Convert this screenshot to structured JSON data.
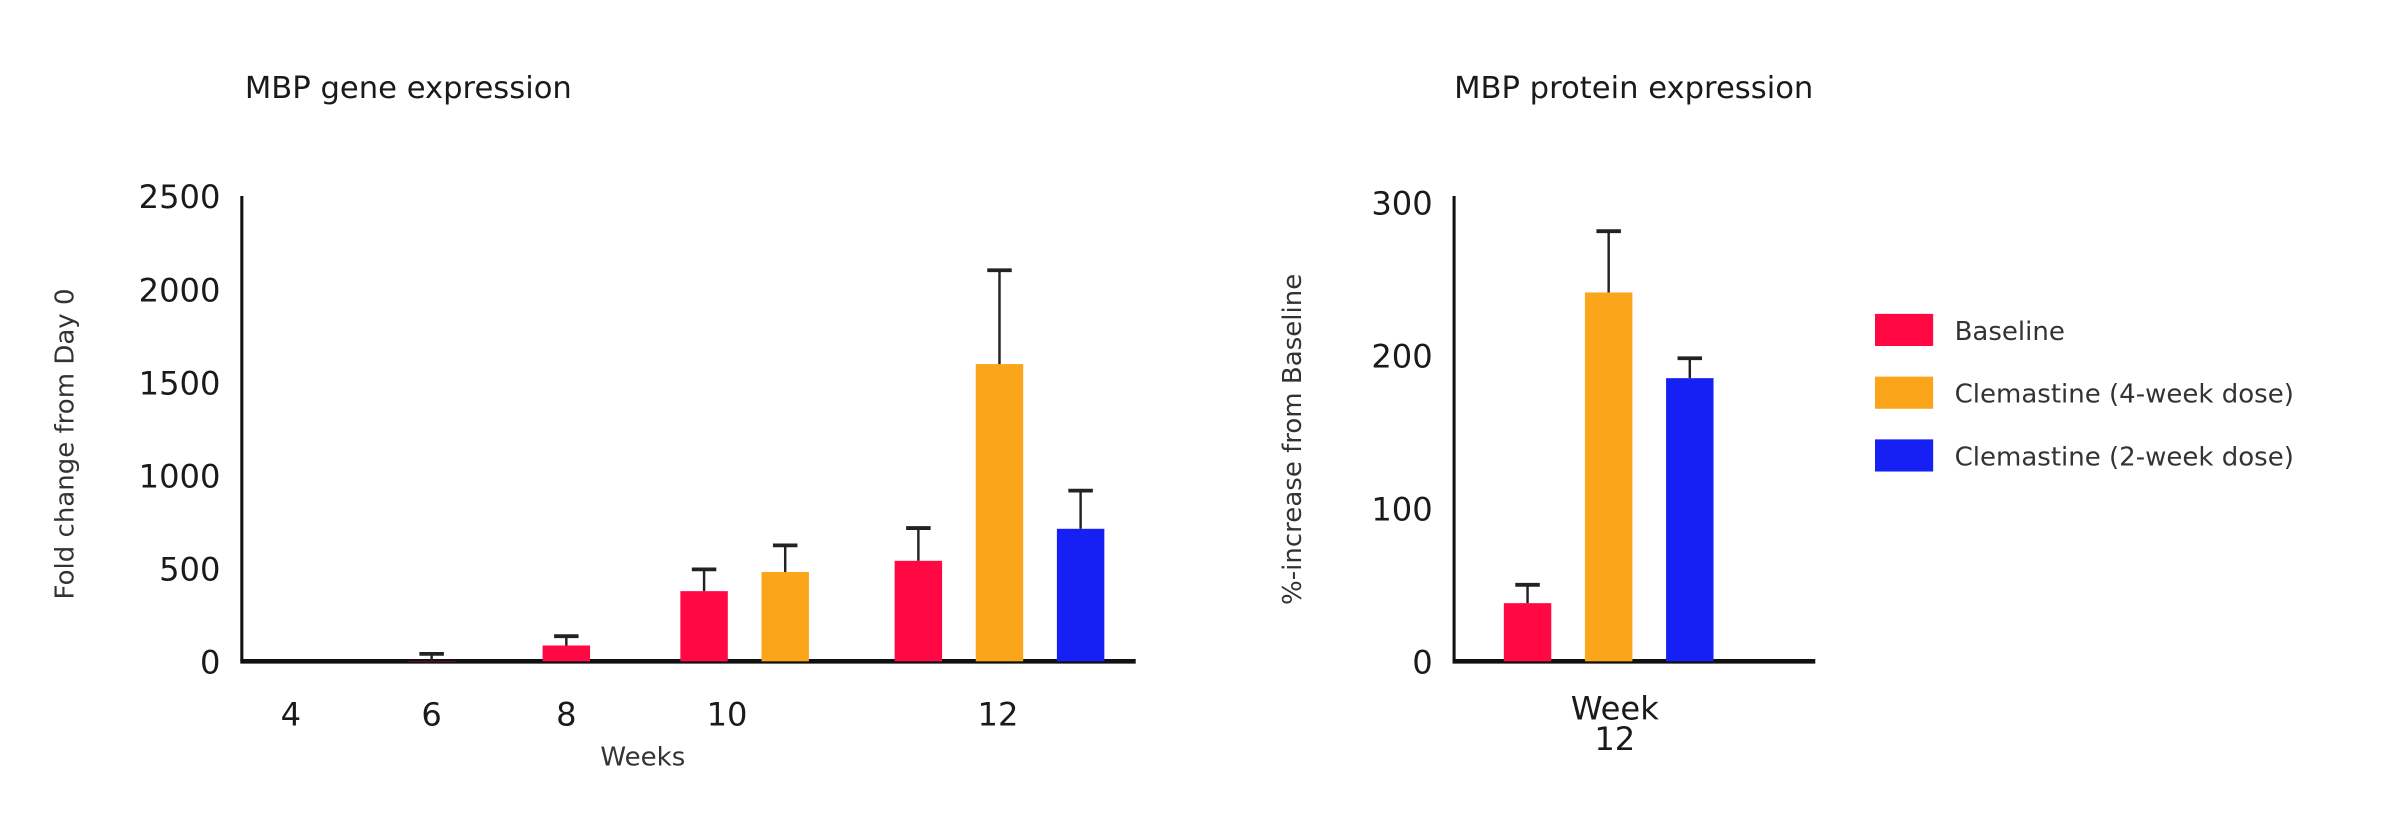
{
  "colors": {
    "Baseline": "#FF0844",
    "Clemastine (4-week dose)": "#FBA61A",
    "Clemastine (2-week dose)": "#1620F5"
  },
  "legend": [
    "Baseline",
    "Clemastine (4-week dose)",
    "Clemastine (2-week dose)"
  ],
  "chart_data": [
    {
      "type": "bar",
      "title": "MBP gene expression",
      "xlabel": "Weeks",
      "ylabel": "Fold change from Day 0",
      "ylim": [
        0,
        2500
      ],
      "yticks": [
        "0",
        "500",
        "1000",
        "1500",
        "2000",
        "2500"
      ],
      "categories": [
        "4",
        "6",
        "8",
        "10",
        "12"
      ],
      "error_bars": true,
      "series": [
        {
          "name": "Baseline",
          "values": [
            null,
            2,
            85,
            377,
            540
          ],
          "errors_upper": [
            null,
            40,
            135,
            494,
            716
          ]
        },
        {
          "name": "Clemastine (4-week dose)",
          "values": [
            null,
            null,
            null,
            480,
            1597
          ],
          "errors_upper": [
            null,
            null,
            null,
            623,
            2101
          ]
        },
        {
          "name": "Clemastine (2-week dose)",
          "values": [
            null,
            null,
            null,
            null,
            712
          ],
          "errors_upper": [
            null,
            null,
            null,
            null,
            917
          ]
        }
      ]
    },
    {
      "type": "bar",
      "title": "MBP protein expression",
      "xlabel": "",
      "ylabel": "%-increase from Baseline",
      "ylim": [
        0,
        300
      ],
      "yticks": [
        "0",
        "100",
        "200",
        "300"
      ],
      "categories": [
        "Week 12"
      ],
      "category_lines": [
        "Week",
        "12"
      ],
      "error_bars": true,
      "series": [
        {
          "name": "Baseline",
          "values": [
            38
          ],
          "errors_upper": [
            50
          ]
        },
        {
          "name": "Clemastine (4-week dose)",
          "values": [
            241
          ],
          "errors_upper": [
            281
          ]
        },
        {
          "name": "Clemastine (2-week dose)",
          "values": [
            185
          ],
          "errors_upper": [
            198
          ]
        }
      ]
    }
  ]
}
